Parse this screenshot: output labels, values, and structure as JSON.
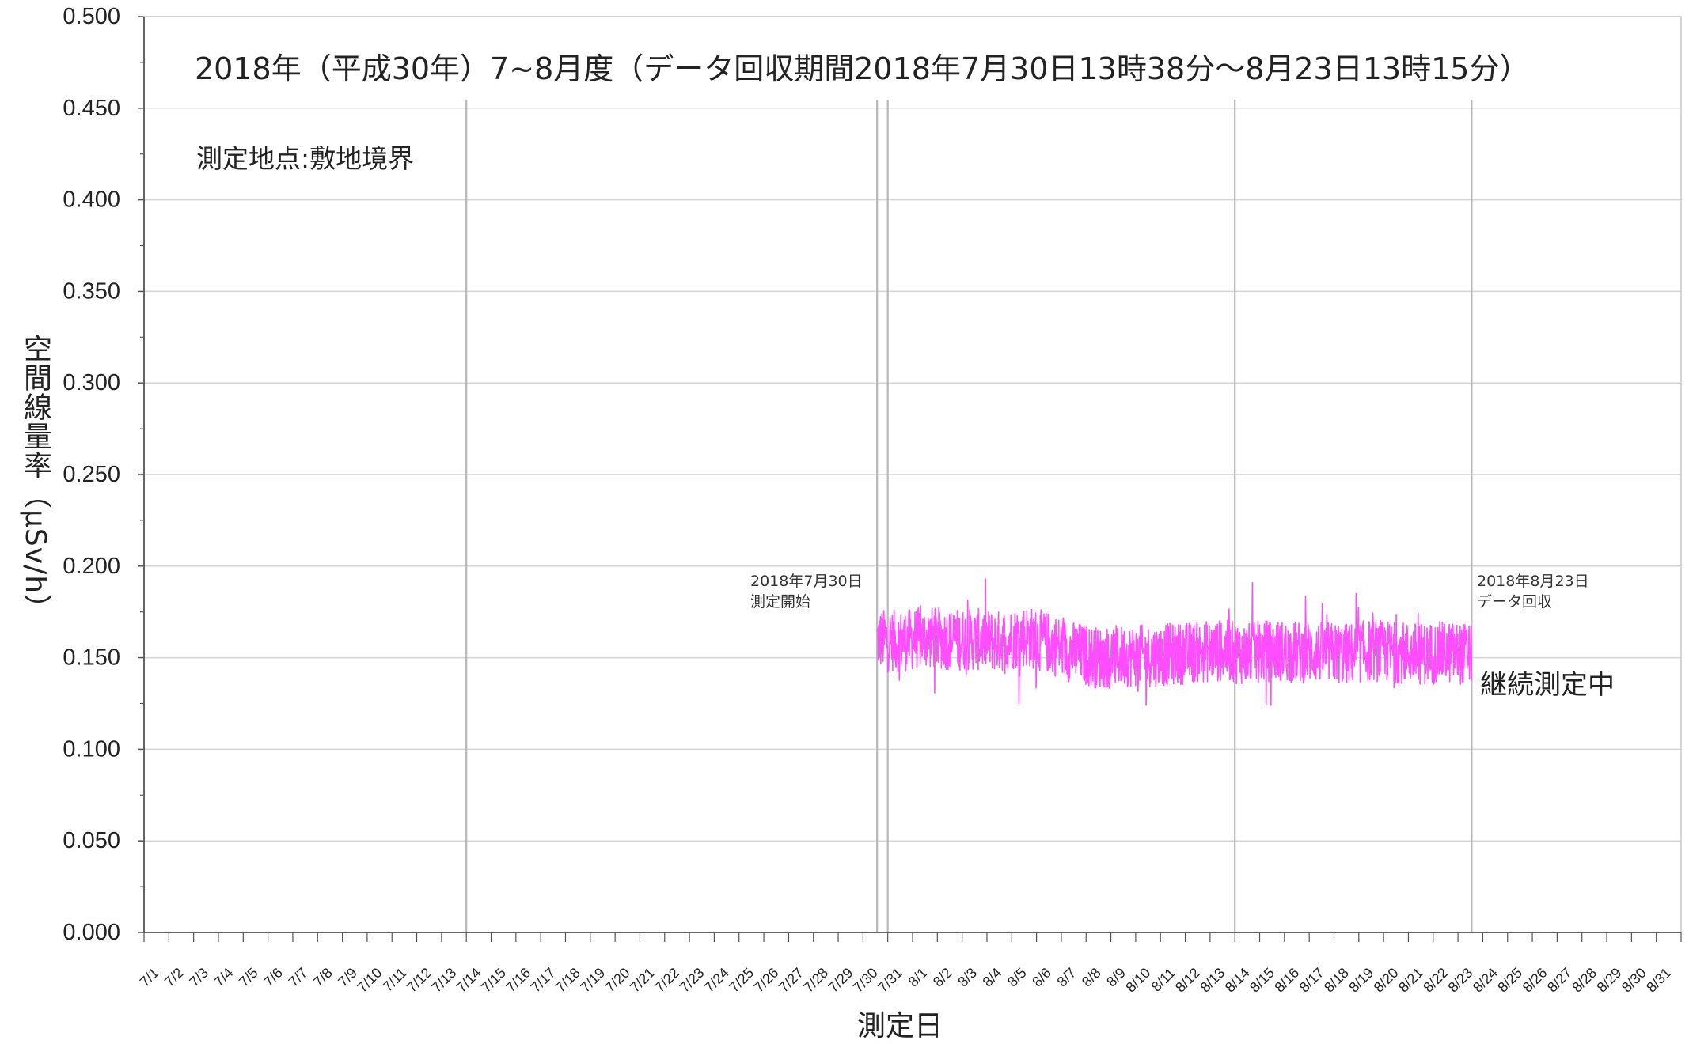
{
  "chart_data": {
    "type": "line",
    "title": "2018年（平成30年）7~8月度（データ回収期間2018年7月30日13時38分～8月23日13時15分）",
    "subtitle": "測定地点:敷地境界",
    "xlabel": "測定日",
    "ylabel": "空間線量率（μSv/h）",
    "ylim": [
      0,
      0.5
    ],
    "y_major_ticks": [
      "0.000",
      "0.050",
      "0.100",
      "0.150",
      "0.200",
      "0.250",
      "0.300",
      "0.350",
      "0.400",
      "0.450",
      "0.500"
    ],
    "x_ticks": [
      "7/1",
      "7/2",
      "7/3",
      "7/4",
      "7/5",
      "7/6",
      "7/7",
      "7/8",
      "7/9",
      "7/10",
      "7/11",
      "7/12",
      "7/13",
      "7/14",
      "7/15",
      "7/16",
      "7/17",
      "7/18",
      "7/19",
      "7/20",
      "7/21",
      "7/22",
      "7/23",
      "7/24",
      "7/25",
      "7/26",
      "7/27",
      "7/28",
      "7/29",
      "7/30",
      "7/31",
      "8/1",
      "8/2",
      "8/3",
      "8/4",
      "8/5",
      "8/6",
      "8/7",
      "8/8",
      "8/9",
      "8/10",
      "8/11",
      "8/12",
      "8/13",
      "8/14",
      "8/15",
      "8/16",
      "8/17",
      "8/18",
      "8/19",
      "8/20",
      "8/21",
      "8/22",
      "8/23",
      "8/24",
      "8/25",
      "8/26",
      "8/27",
      "8/28",
      "8/29",
      "8/30",
      "8/31"
    ],
    "grid": true,
    "series": [
      {
        "color": "#ff4dff",
        "x_start": "2018-07-30 13:38",
        "x_end": "2018-08-23 13:15",
        "daily_mean": [
          {
            "x": "7/30",
            "y": 0.16
          },
          {
            "x": "7/31",
            "y": 0.159
          },
          {
            "x": "8/1",
            "y": 0.161
          },
          {
            "x": "8/2",
            "y": 0.16
          },
          {
            "x": "8/3",
            "y": 0.16
          },
          {
            "x": "8/4",
            "y": 0.159
          },
          {
            "x": "8/5",
            "y": 0.162
          },
          {
            "x": "8/6",
            "y": 0.158
          },
          {
            "x": "8/7",
            "y": 0.153
          },
          {
            "x": "8/8",
            "y": 0.15
          },
          {
            "x": "8/9",
            "y": 0.151
          },
          {
            "x": "8/10",
            "y": 0.151
          },
          {
            "x": "8/11",
            "y": 0.152
          },
          {
            "x": "8/12",
            "y": 0.153
          },
          {
            "x": "8/13",
            "y": 0.154
          },
          {
            "x": "8/14",
            "y": 0.152
          },
          {
            "x": "8/15",
            "y": 0.154
          },
          {
            "x": "8/16",
            "y": 0.153
          },
          {
            "x": "8/17",
            "y": 0.153
          },
          {
            "x": "8/18",
            "y": 0.152
          },
          {
            "x": "8/19",
            "y": 0.154
          },
          {
            "x": "8/20",
            "y": 0.153
          },
          {
            "x": "8/21",
            "y": 0.152
          },
          {
            "x": "8/22",
            "y": 0.153
          },
          {
            "x": "8/23",
            "y": 0.152
          }
        ],
        "min": 0.124,
        "max": 0.193
      }
    ],
    "markers": [
      "7/14",
      "7/30",
      "7/31",
      "8/14",
      "8/23"
    ],
    "annotations": {
      "start": [
        "2018年7月30日",
        "測定開始"
      ],
      "end": [
        "2018年8月23日",
        "データ回収"
      ],
      "ongoing": "継続測定中"
    }
  }
}
